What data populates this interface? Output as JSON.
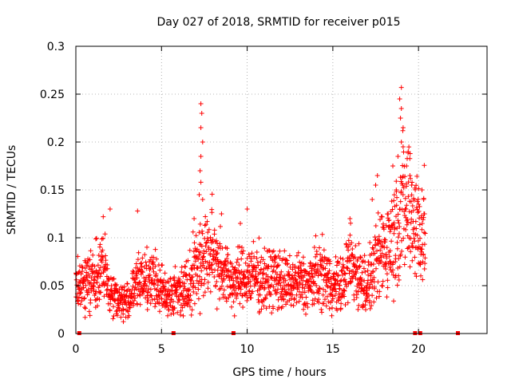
{
  "chart_data": {
    "type": "scatter",
    "title": "Day 027 of 2018, SRMTID for receiver p015",
    "xlabel": "GPS time / hours",
    "ylabel": "SRMTID / TECUs",
    "xlim": [
      0,
      24
    ],
    "ylim": [
      0,
      0.3
    ],
    "xticks": [
      0,
      5,
      10,
      15,
      20
    ],
    "xtick_labels": [
      "0",
      "5",
      "10",
      "15",
      "20"
    ],
    "yticks": [
      0,
      0.05,
      0.1,
      0.15,
      0.2,
      0.25,
      0.3
    ],
    "ytick_labels": [
      "0",
      "0.05",
      "0.1",
      "0.15",
      "0.2",
      "0.25",
      "0.3"
    ],
    "grid": true,
    "marker": "+",
    "marker_color": "#ff0000",
    "baseline_marks_x": [
      0.2,
      5.7,
      9.2,
      19.8,
      20.1,
      22.3
    ],
    "series": [
      {
        "name": "SRMTID",
        "profile": [
          [
            0.0,
            0.05
          ],
          [
            0.5,
            0.05
          ],
          [
            1.0,
            0.055
          ],
          [
            1.5,
            0.07
          ],
          [
            2.0,
            0.045
          ],
          [
            2.5,
            0.035
          ],
          [
            3.0,
            0.033
          ],
          [
            3.5,
            0.05
          ],
          [
            4.0,
            0.06
          ],
          [
            4.5,
            0.055
          ],
          [
            5.0,
            0.045
          ],
          [
            5.5,
            0.04
          ],
          [
            6.0,
            0.045
          ],
          [
            6.5,
            0.05
          ],
          [
            7.0,
            0.07
          ],
          [
            7.5,
            0.08
          ],
          [
            8.0,
            0.085
          ],
          [
            8.5,
            0.07
          ],
          [
            9.0,
            0.055
          ],
          [
            9.5,
            0.055
          ],
          [
            10.0,
            0.06
          ],
          [
            10.5,
            0.06
          ],
          [
            11.0,
            0.055
          ],
          [
            11.5,
            0.06
          ],
          [
            12.0,
            0.055
          ],
          [
            12.5,
            0.05
          ],
          [
            13.0,
            0.055
          ],
          [
            13.5,
            0.05
          ],
          [
            14.0,
            0.06
          ],
          [
            14.5,
            0.06
          ],
          [
            15.0,
            0.05
          ],
          [
            15.5,
            0.05
          ],
          [
            16.0,
            0.075
          ],
          [
            16.5,
            0.06
          ],
          [
            17.0,
            0.05
          ],
          [
            17.5,
            0.07
          ],
          [
            18.0,
            0.09
          ],
          [
            18.5,
            0.1
          ],
          [
            19.0,
            0.13
          ],
          [
            19.5,
            0.13
          ],
          [
            20.0,
            0.11
          ],
          [
            20.4,
            0.1
          ]
        ],
        "peaks": [
          [
            7.3,
            0.24
          ],
          [
            7.35,
            0.23
          ],
          [
            7.3,
            0.215
          ],
          [
            7.4,
            0.2
          ],
          [
            7.3,
            0.185
          ],
          [
            7.25,
            0.17
          ],
          [
            7.3,
            0.158
          ],
          [
            7.2,
            0.145
          ],
          [
            7.4,
            0.14
          ],
          [
            6.9,
            0.12
          ],
          [
            19.0,
            0.257
          ],
          [
            18.9,
            0.245
          ],
          [
            19.0,
            0.235
          ],
          [
            18.95,
            0.225
          ],
          [
            19.1,
            0.215
          ],
          [
            19.0,
            0.2
          ],
          [
            19.1,
            0.195
          ],
          [
            18.8,
            0.185
          ],
          [
            19.3,
            0.175
          ],
          [
            19.4,
            0.19
          ],
          [
            19.5,
            0.165
          ],
          [
            18.5,
            0.175
          ],
          [
            17.6,
            0.165
          ],
          [
            17.5,
            0.155
          ],
          [
            19.6,
            0.155
          ],
          [
            20.2,
            0.15
          ],
          [
            20.3,
            0.14
          ],
          [
            20.0,
            0.135
          ],
          [
            20.35,
            0.125
          ],
          [
            2.0,
            0.13
          ],
          [
            1.6,
            0.122
          ],
          [
            3.6,
            0.128
          ],
          [
            8.5,
            0.125
          ],
          [
            10.0,
            0.13
          ],
          [
            16.0,
            0.12
          ],
          [
            9.6,
            0.115
          ],
          [
            17.3,
            0.14
          ],
          [
            18.7,
            0.15
          ]
        ]
      }
    ]
  }
}
